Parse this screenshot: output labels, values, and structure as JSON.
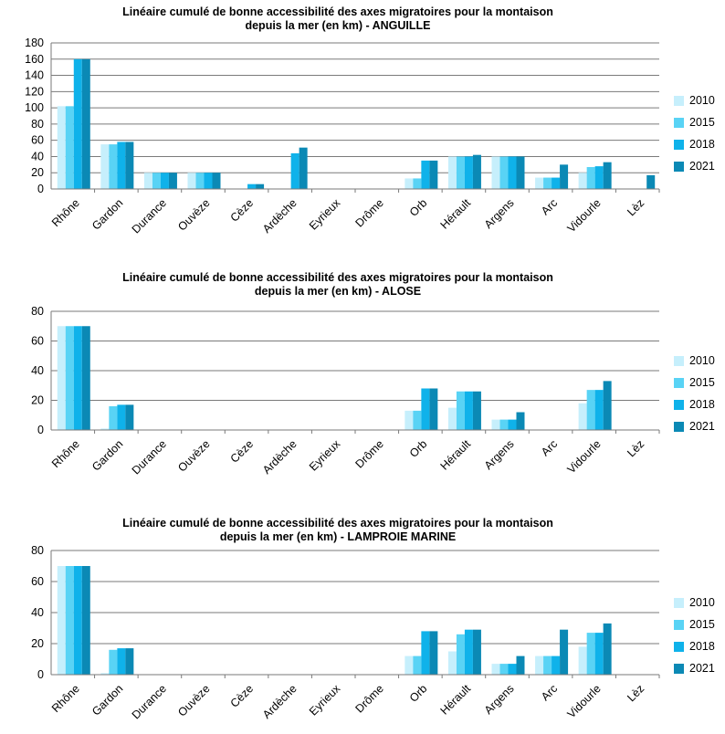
{
  "series_colors": [
    "#c6effc",
    "#59d3f5",
    "#0fb2ea",
    "#0b89b5"
  ],
  "chart_data": [
    {
      "type": "bar",
      "title_line1": "Linéaire cumulé de bonne accessibilité des axes migratoires pour la montaison",
      "title_line2": "depuis la mer (en km) - ANGUILLE",
      "categories": [
        "Rhône",
        "Gardon",
        "Durance",
        "Ouvèze",
        "Cèze",
        "Ardèche",
        "Eyrieux",
        "Drôme",
        "Orb",
        "Hérault",
        "Argens",
        "Arc",
        "Vidourle",
        "Lèz"
      ],
      "ylim": [
        0,
        180
      ],
      "yticks": [
        "0",
        "20",
        "40",
        "60",
        "80",
        "100",
        "120",
        "140",
        "160",
        "180"
      ],
      "grid": true,
      "legend_position": "right",
      "series": [
        {
          "name": "2010",
          "values": [
            102,
            55,
            20,
            20,
            0,
            0,
            0,
            0,
            13,
            40,
            40,
            14,
            20,
            0
          ]
        },
        {
          "name": "2015",
          "values": [
            102,
            55,
            20,
            20,
            0,
            0,
            0,
            0,
            13,
            40,
            40,
            14,
            27,
            0
          ]
        },
        {
          "name": "2018",
          "values": [
            160,
            58,
            20,
            20,
            6,
            44,
            0,
            0,
            35,
            40,
            40,
            14,
            28,
            0
          ]
        },
        {
          "name": "2021",
          "values": [
            160,
            58,
            20,
            20,
            6,
            51,
            0,
            0,
            35,
            42,
            40,
            30,
            33,
            17
          ]
        }
      ]
    },
    {
      "type": "bar",
      "title_line1": "Linéaire cumulé de bonne accessibilité des axes migratoires pour la montaison",
      "title_line2": "depuis la mer (en km) - ALOSE",
      "categories": [
        "Rhône",
        "Gardon",
        "Durance",
        "Ouvèze",
        "Cèze",
        "Ardèche",
        "Eyrieux",
        "Drôme",
        "Orb",
        "Hérault",
        "Argens",
        "Arc",
        "Vidourle",
        "Lèz"
      ],
      "ylim": [
        0,
        80
      ],
      "yticks": [
        "0",
        "20",
        "40",
        "60",
        "80"
      ],
      "grid": true,
      "legend_position": "right",
      "series": [
        {
          "name": "2010",
          "values": [
            70,
            1,
            0,
            0,
            0,
            0,
            0,
            0,
            13,
            15,
            7,
            0,
            18,
            0
          ]
        },
        {
          "name": "2015",
          "values": [
            70,
            16,
            0,
            0,
            0,
            0,
            0,
            0,
            13,
            26,
            7,
            0,
            27,
            0
          ]
        },
        {
          "name": "2018",
          "values": [
            70,
            17,
            0,
            0,
            0,
            0,
            0,
            0,
            28,
            26,
            7,
            0,
            27,
            0
          ]
        },
        {
          "name": "2021",
          "values": [
            70,
            17,
            0,
            0,
            0,
            0,
            0,
            0,
            28,
            26,
            12,
            0,
            33,
            0
          ]
        }
      ]
    },
    {
      "type": "bar",
      "title_line1": "Linéaire cumulé de bonne accessibilité des axes migratoires pour la montaison",
      "title_line2": "depuis la mer (en km) - LAMPROIE MARINE",
      "categories": [
        "Rhône",
        "Gardon",
        "Durance",
        "Ouvèze",
        "Cèze",
        "Ardèche",
        "Eyrieux",
        "Drôme",
        "Orb",
        "Hérault",
        "Argens",
        "Arc",
        "Vidourle",
        "Lèz"
      ],
      "ylim": [
        0,
        80
      ],
      "yticks": [
        "0",
        "20",
        "40",
        "60",
        "80"
      ],
      "grid": true,
      "legend_position": "right",
      "series": [
        {
          "name": "2010",
          "values": [
            70,
            1,
            0,
            0,
            0,
            0,
            0,
            0,
            12,
            15,
            7,
            12,
            18,
            0
          ]
        },
        {
          "name": "2015",
          "values": [
            70,
            16,
            0,
            0,
            0,
            0,
            0,
            0,
            12,
            26,
            7,
            12,
            27,
            0
          ]
        },
        {
          "name": "2018",
          "values": [
            70,
            17,
            0,
            0,
            0,
            0,
            0,
            0,
            28,
            29,
            7,
            12,
            27,
            0
          ]
        },
        {
          "name": "2021",
          "values": [
            70,
            17,
            0,
            0,
            0,
            0,
            0,
            0,
            28,
            29,
            12,
            29,
            33,
            0
          ]
        }
      ]
    }
  ]
}
